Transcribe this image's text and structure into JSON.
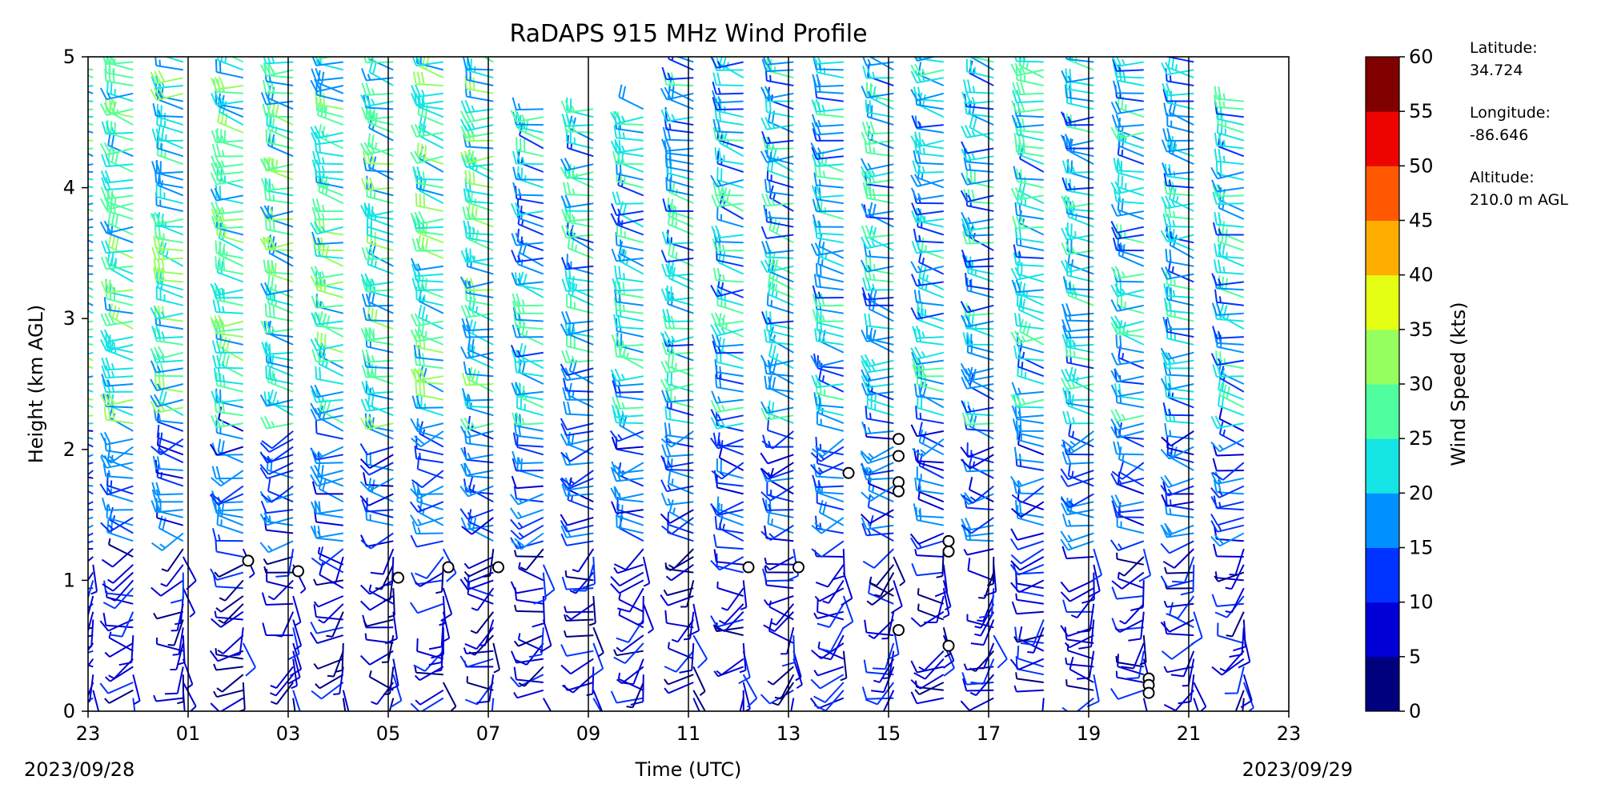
{
  "chart_data": {
    "type": "wind_barb_profile",
    "title": "RaDAPS 915 MHz Wind Profile",
    "xlabel": "Time (UTC)",
    "ylabel": "Height (km AGL)",
    "x_tick_labels": [
      "23",
      "01",
      "03",
      "05",
      "07",
      "09",
      "11",
      "13",
      "15",
      "17",
      "19",
      "21",
      "23"
    ],
    "x_range_hours": [
      -1,
      23
    ],
    "y_ticks": [
      0,
      1,
      2,
      3,
      4,
      5
    ],
    "ylim": [
      0,
      5
    ],
    "date_start": "2023/09/28",
    "date_end": "2023/09/29",
    "vertical_gridlines_at_hours": [
      1,
      3,
      5,
      7,
      9,
      11,
      13,
      15,
      17,
      19,
      21
    ],
    "profile_times_hours": [
      -0.9,
      -0.1,
      0.9,
      2.1,
      3.1,
      4.1,
      5.1,
      6.1,
      7.1,
      8.1,
      9.1,
      10.1,
      11.1,
      12.1,
      13.1,
      14.1,
      15.1,
      16.1,
      17.1,
      18.1,
      19.1,
      20.1,
      21.1,
      22.1
    ],
    "colorbar": {
      "label": "Wind Speed (kts)",
      "ticks": [
        0,
        5,
        10,
        15,
        20,
        25,
        30,
        35,
        40,
        45,
        50,
        55,
        60
      ],
      "colors": [
        "#00007f",
        "#0000d6",
        "#0033ff",
        "#0090ff",
        "#14e4e4",
        "#4fff9f",
        "#94ff5f",
        "#e4ff14",
        "#ffad00",
        "#ff5800",
        "#ed0400",
        "#800000"
      ]
    },
    "calm_markers": [
      {
        "time": 2.2,
        "height_km": 1.15
      },
      {
        "time": 3.2,
        "height_km": 1.07
      },
      {
        "time": 5.2,
        "height_km": 1.02
      },
      {
        "time": 6.2,
        "height_km": 1.1
      },
      {
        "time": 7.2,
        "height_km": 1.1
      },
      {
        "time": 12.2,
        "height_km": 1.1
      },
      {
        "time": 13.2,
        "height_km": 1.1
      },
      {
        "time": 14.2,
        "height_km": 1.82
      },
      {
        "time": 15.2,
        "height_km": 2.08
      },
      {
        "time": 15.2,
        "height_km": 1.95
      },
      {
        "time": 15.2,
        "height_km": 1.75
      },
      {
        "time": 15.2,
        "height_km": 1.68
      },
      {
        "time": 15.2,
        "height_km": 0.62
      },
      {
        "time": 16.2,
        "height_km": 1.3
      },
      {
        "time": 16.2,
        "height_km": 1.22
      },
      {
        "time": 16.2,
        "height_km": 0.5
      },
      {
        "time": 20.2,
        "height_km": 0.25
      },
      {
        "time": 20.2,
        "height_km": 0.2
      },
      {
        "time": 20.2,
        "height_km": 0.14
      }
    ]
  },
  "site_info": {
    "latitude_label": "Latitude:",
    "latitude_value": "34.724",
    "longitude_label": "Longitude:",
    "longitude_value": "-86.646",
    "altitude_label": "Altitude:",
    "altitude_value": "210.0 m AGL"
  }
}
